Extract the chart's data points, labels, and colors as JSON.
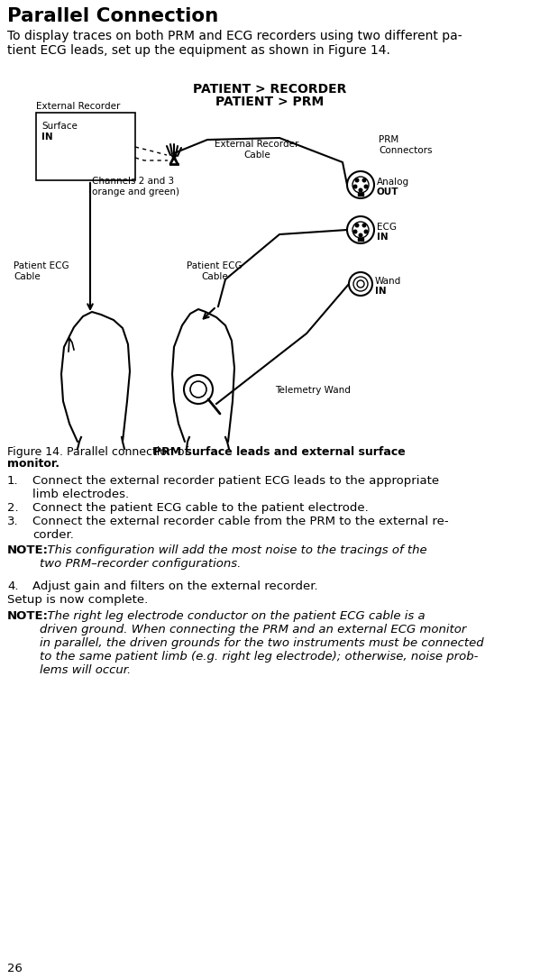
{
  "title": "Parallel Connection",
  "intro": "To display traces on both PRM and ECG recorders using two different pa-\ntient ECG leads, set up the equipment as shown in Figure 14.",
  "diag_title1": "PATIENT > RECORDER",
  "diag_title2": "PATIENT > PRM",
  "label_ext_rec": "External Recorder",
  "label_surface": "Surface",
  "label_surface_in": "IN",
  "label_channels": "Channels 2 and 3\n(orange and green)",
  "label_ext_cable": "External Recorder\nCable",
  "label_prm_conn": "PRM\nConnectors",
  "label_analog": "Analog",
  "label_analog_out": "OUT",
  "label_ecg": "ECG",
  "label_ecg_in": "IN",
  "label_wand": "Wand",
  "label_wand_in": "IN",
  "label_pat_ecg_l1": "Patient ECG",
  "label_pat_ecg_l2": "Cable",
  "label_pat_ecg_r1": "Patient ECG",
  "label_pat_ecg_r2": "Cable",
  "label_tel_wand": "Telemetry Wand",
  "fig_cap_plain": "Figure 14. Parallel connection of ",
  "fig_cap_bold1": "PRM surface leads and external surface",
  "fig_cap_bold2": "monitor.",
  "step1_num": "1.",
  "step1": "Connect the external recorder patient ECG leads to the appropriate\nlimb electrodes.",
  "step2_num": "2.",
  "step2": "Connect the patient ECG cable to the patient electrode.",
  "step3_num": "3.",
  "step3": "Connect the external recorder cable from the PRM to the external re-\ncorder.",
  "note1_bold": "NOTE:",
  "note1_italic": "  This configuration will add the most noise to the tracings of the\ntwo PRM–recorder configurations.",
  "step4_num": "4.",
  "step4": "Adjust gain and filters on the external recorder.",
  "setup": "Setup is now complete.",
  "note2_bold": "NOTE:",
  "note2_italic": "  The right leg electrode conductor on the patient ECG cable is a\ndriven ground. When connecting the PRM and an external ECG monitor\nin parallel, the driven grounds for the two instruments must be connected\nto the same patient limb (e.g. right leg electrode); otherwise, noise prob-\nlems will occur.",
  "page_num": "26"
}
